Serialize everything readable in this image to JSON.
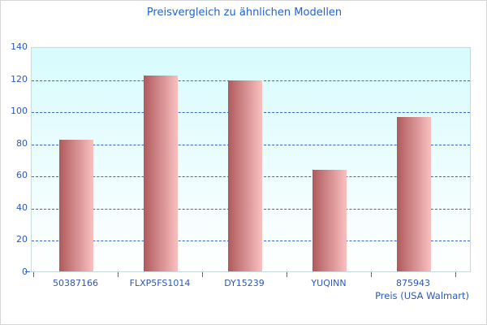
{
  "window": {
    "background": "#ffffff",
    "border_color": "#d6d6d6"
  },
  "chart_data": {
    "type": "bar",
    "title": "Preisvergleich zu ähnlichen Modellen",
    "categories": [
      "50387166",
      "FLXP5FS1014",
      "DY15239",
      "YUQINN",
      "875943"
    ],
    "values": [
      82,
      122,
      119,
      63,
      96
    ],
    "xlabel": "Preis (USA Walmart)",
    "ylabel": "",
    "ylim": [
      0,
      140
    ],
    "yticks": [
      0,
      20,
      40,
      60,
      80,
      100,
      120,
      140
    ],
    "grid": "horizontal-dashed",
    "legend": "none",
    "colors": {
      "title_text": "#2163cf",
      "axis_text": "#2b58b8",
      "gridline": "#3465c8",
      "tick": "#3465c8",
      "bar_gradient_left": "#b05a5c",
      "bar_gradient_right": "#f9c0c0",
      "plot_bg_top": "#d7fbfd",
      "plot_bg_bottom": "#ffffff",
      "plot_border": "#c6dada"
    }
  }
}
